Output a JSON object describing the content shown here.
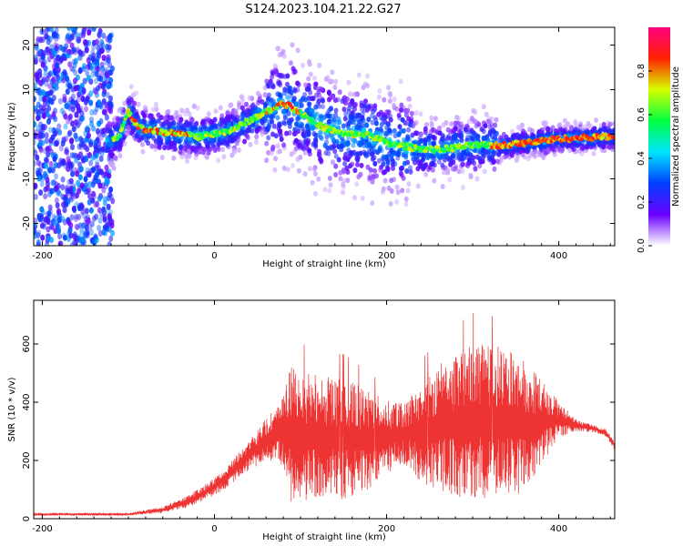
{
  "title": "S124.2023.104.21.22.G27",
  "chart_data": [
    {
      "type": "heatmap",
      "xlabel": "Height of straight line (km)",
      "ylabel": "Frequency (Hz)",
      "xlim": [
        -210,
        465
      ],
      "ylim": [
        -25,
        24
      ],
      "xticks": [
        "-200",
        "0",
        "200",
        "400"
      ],
      "yticks": [
        "-20",
        "-10",
        "0",
        "10",
        "20"
      ],
      "colorbar": {
        "label": "Normalized spectral amplitude",
        "range": [
          0,
          1
        ],
        "ticks": [
          "0.0",
          "0.2",
          "0.4",
          "0.6",
          "0.8"
        ],
        "colors": [
          "#ffffff",
          "#6a00ff",
          "#0040ff",
          "#00e5ff",
          "#00ff40",
          "#d6ff00",
          "#ff2200",
          "#ff0080"
        ]
      },
      "ridge": [
        {
          "x": -120,
          "y": -1.5
        },
        {
          "x": -110,
          "y": 0
        },
        {
          "x": -100,
          "y": 5
        },
        {
          "x": -90,
          "y": 2
        },
        {
          "x": -80,
          "y": 1
        },
        {
          "x": -60,
          "y": 0.5
        },
        {
          "x": -40,
          "y": 0
        },
        {
          "x": -20,
          "y": -0.5
        },
        {
          "x": 0,
          "y": 0
        },
        {
          "x": 20,
          "y": 1
        },
        {
          "x": 40,
          "y": 3
        },
        {
          "x": 60,
          "y": 5
        },
        {
          "x": 80,
          "y": 7
        },
        {
          "x": 100,
          "y": 5
        },
        {
          "x": 120,
          "y": 2
        },
        {
          "x": 150,
          "y": 0
        },
        {
          "x": 180,
          "y": 0
        },
        {
          "x": 200,
          "y": -2
        },
        {
          "x": 230,
          "y": -3
        },
        {
          "x": 260,
          "y": -3.5
        },
        {
          "x": 300,
          "y": -2.5
        },
        {
          "x": 330,
          "y": -2.5
        },
        {
          "x": 360,
          "y": -2
        },
        {
          "x": 400,
          "y": -1
        },
        {
          "x": 465,
          "y": -0.5
        }
      ]
    },
    {
      "type": "line",
      "xlabel": "Height of straight line (km)",
      "ylabel": "SNR (10 * v/v)",
      "xlim": [
        -210,
        465
      ],
      "ylim": [
        0,
        750
      ],
      "xticks": [
        "-200",
        "0",
        "200",
        "400"
      ],
      "yticks": [
        "0",
        "200",
        "400",
        "600"
      ],
      "series": [
        {
          "color": "#ee3333",
          "envelope": [
            {
              "x": -210,
              "mid": 15,
              "amp": 5
            },
            {
              "x": -100,
              "mid": 15,
              "amp": 5
            },
            {
              "x": -60,
              "mid": 30,
              "amp": 10
            },
            {
              "x": -30,
              "mid": 60,
              "amp": 20
            },
            {
              "x": 0,
              "mid": 110,
              "amp": 30
            },
            {
              "x": 20,
              "mid": 160,
              "amp": 40
            },
            {
              "x": 40,
              "mid": 220,
              "amp": 50
            },
            {
              "x": 60,
              "mid": 270,
              "amp": 70
            },
            {
              "x": 75,
              "mid": 290,
              "amp": 100
            },
            {
              "x": 90,
              "mid": 290,
              "amp": 230
            },
            {
              "x": 120,
              "mid": 280,
              "amp": 200
            },
            {
              "x": 150,
              "mid": 275,
              "amp": 200
            },
            {
              "x": 180,
              "mid": 270,
              "amp": 160
            },
            {
              "x": 200,
              "mid": 280,
              "amp": 120
            },
            {
              "x": 220,
              "mid": 290,
              "amp": 100
            },
            {
              "x": 240,
              "mid": 300,
              "amp": 170
            },
            {
              "x": 270,
              "mid": 320,
              "amp": 220
            },
            {
              "x": 300,
              "mid": 330,
              "amp": 260
            },
            {
              "x": 330,
              "mid": 330,
              "amp": 250
            },
            {
              "x": 360,
              "mid": 320,
              "amp": 220
            },
            {
              "x": 380,
              "mid": 330,
              "amp": 140
            },
            {
              "x": 400,
              "mid": 340,
              "amp": 60
            },
            {
              "x": 420,
              "mid": 320,
              "amp": 20
            },
            {
              "x": 440,
              "mid": 310,
              "amp": 12
            },
            {
              "x": 455,
              "mid": 295,
              "amp": 12
            },
            {
              "x": 465,
              "mid": 250,
              "amp": 15
            }
          ]
        }
      ]
    }
  ]
}
